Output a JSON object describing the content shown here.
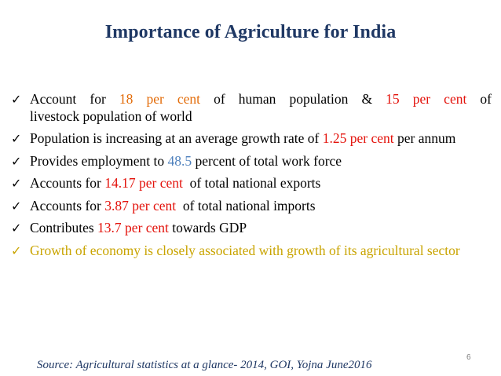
{
  "title": "Importance of Agriculture for India",
  "bullets": [
    {
      "check": "✓",
      "l1_a": "Account for ",
      "l1_b": "18 per cent",
      "l1_c": " of human population & ",
      "l1_d": "15 per cent",
      "l1_e": " of",
      "l2": "livestock population of world"
    },
    {
      "check": "✓",
      "a": "Population is increasing at an average growth rate of ",
      "b": "1.25 per cent",
      "c": " per annum"
    },
    {
      "check": "✓",
      "a": "Provides employment to ",
      "b": "48.5",
      "c": " percent of total work force"
    },
    {
      "check": "✓",
      "a": "Accounts for ",
      "b": "14.17 per cent",
      "c": "  of total national exports"
    },
    {
      "check": "✓",
      "a": "Accounts for ",
      "b": "3.87 per cent",
      "c": "  of total national imports"
    },
    {
      "check": "✓",
      "a": "Contributes ",
      "b": "13.7 per cent",
      "c": " towards GDP"
    },
    {
      "check": "✓",
      "a": "Growth of economy is closely associated with growth of its agricultural sector"
    }
  ],
  "source": "Source: Agricultural statistics at a glance- 2014, GOI, Yojna  June2016",
  "page_number": "6",
  "colors": {
    "title": "#1f3864",
    "highlight_red": "#e3120b",
    "highlight_orange": "#e36c09",
    "highlight_blue": "#4f81bd",
    "last_bullet": "#c9a400"
  }
}
